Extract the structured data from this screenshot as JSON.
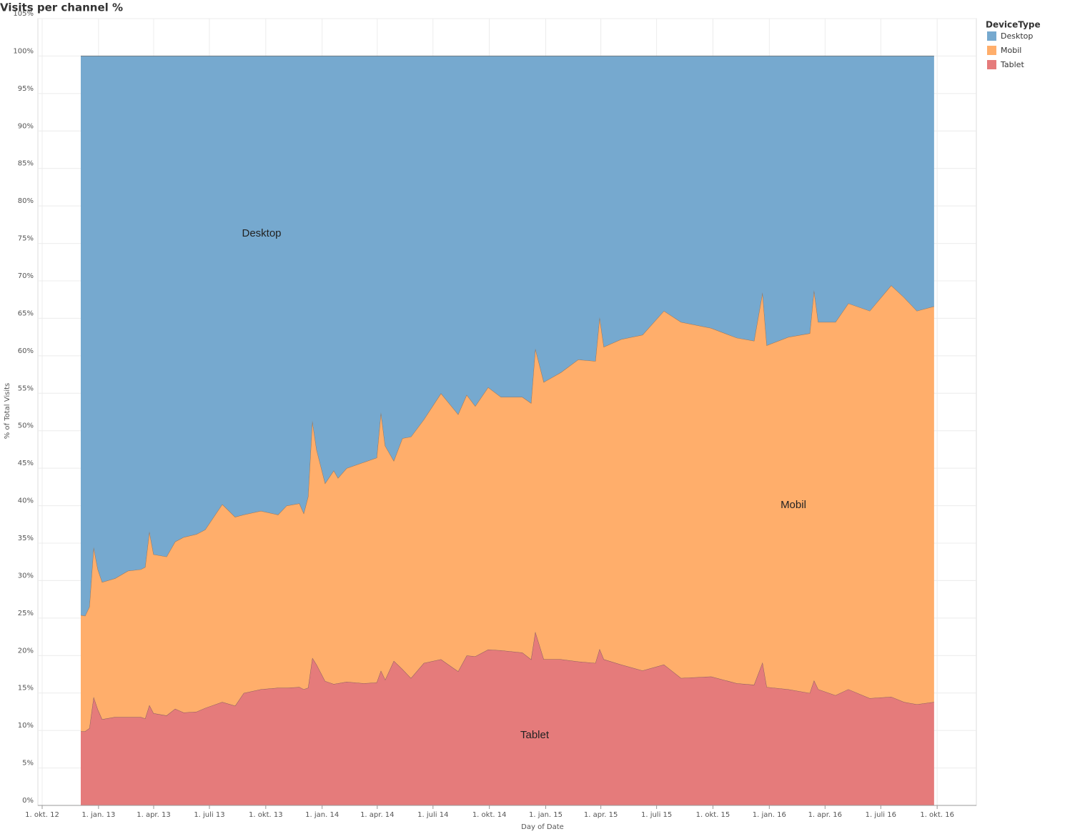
{
  "chart_data": {
    "type": "stacked_area",
    "title": "Visits per channel %",
    "x_label": "Day of Date",
    "y_label": "% of Total Visits",
    "legend_title": "DeviceType",
    "legend_position": "right",
    "grid": true,
    "x": [
      "2012-12-03",
      "2012-12-10",
      "2012-12-17",
      "2012-12-24",
      "2012-12-31",
      "2013-01-07",
      "2013-01-28",
      "2013-02-18",
      "2013-03-11",
      "2013-03-18",
      "2013-03-25",
      "2013-04-01",
      "2013-04-22",
      "2013-05-06",
      "2013-05-20",
      "2013-06-10",
      "2013-06-24",
      "2013-07-22",
      "2013-08-12",
      "2013-08-26",
      "2013-09-23",
      "2013-10-21",
      "2013-11-04",
      "2013-11-25",
      "2013-12-02",
      "2013-12-09",
      "2013-12-16",
      "2013-12-23",
      "2014-01-06",
      "2014-01-20",
      "2014-01-27",
      "2014-02-10",
      "2014-03-10",
      "2014-03-31",
      "2014-04-07",
      "2014-04-14",
      "2014-04-28",
      "2014-05-12",
      "2014-05-26",
      "2014-06-16",
      "2014-07-14",
      "2014-08-11",
      "2014-08-25",
      "2014-09-08",
      "2014-09-29",
      "2014-10-20",
      "2014-11-24",
      "2014-12-08",
      "2014-12-15",
      "2014-12-29",
      "2015-01-26",
      "2015-02-23",
      "2015-03-23",
      "2015-03-30",
      "2015-04-06",
      "2015-05-04",
      "2015-06-08",
      "2015-07-13",
      "2015-08-10",
      "2015-09-28",
      "2015-11-09",
      "2015-12-07",
      "2015-12-21",
      "2015-12-28",
      "2016-02-01",
      "2016-03-07",
      "2016-03-14",
      "2016-03-21",
      "2016-04-18",
      "2016-05-09",
      "2016-06-13",
      "2016-07-18",
      "2016-08-08",
      "2016-08-29",
      "2016-09-26"
    ],
    "series": [
      {
        "name": "Desktop",
        "color": "#76a9cf",
        "values": [
          74.6,
          74.7,
          73.5,
          65.5,
          68.5,
          70.2,
          69.7,
          68.7,
          68.5,
          68.2,
          63.4,
          66.5,
          66.8,
          64.8,
          64.2,
          63.8,
          63.2,
          59.8,
          61.5,
          61.2,
          60.7,
          61.2,
          60.0,
          59.7,
          61.0,
          58.8,
          48.6,
          52.5,
          57.0,
          55.3,
          56.3,
          55.0,
          54.2,
          53.6,
          47.5,
          52.0,
          54.0,
          51.0,
          50.8,
          48.5,
          45.0,
          47.8,
          45.2,
          46.7,
          44.2,
          45.5,
          45.5,
          46.3,
          39.0,
          43.5,
          42.2,
          40.5,
          40.7,
          34.8,
          38.8,
          37.8,
          37.2,
          34.0,
          35.5,
          36.3,
          37.6,
          38.0,
          31.5,
          38.6,
          37.5,
          37.0,
          31.2,
          35.5,
          35.5,
          33.0,
          34.0,
          30.6,
          32.2,
          34.0,
          33.4
        ]
      },
      {
        "name": "Mobil",
        "color": "#ffae6b",
        "values": [
          15.5,
          15.4,
          16.2,
          20.0,
          18.7,
          18.3,
          18.5,
          19.5,
          19.7,
          20.2,
          23.2,
          21.2,
          21.2,
          22.3,
          23.4,
          23.7,
          23.8,
          26.4,
          25.2,
          23.8,
          23.8,
          23.1,
          24.3,
          24.5,
          23.5,
          25.5,
          31.7,
          28.7,
          26.4,
          28.5,
          27.4,
          28.5,
          29.5,
          30.0,
          34.5,
          31.2,
          26.7,
          30.8,
          32.2,
          32.5,
          35.5,
          34.3,
          34.8,
          33.4,
          35.0,
          33.8,
          34.1,
          34.2,
          37.8,
          37.0,
          38.3,
          40.3,
          40.3,
          44.3,
          41.7,
          43.4,
          44.8,
          47.2,
          47.5,
          46.5,
          46.1,
          45.9,
          49.4,
          45.6,
          47.0,
          48.0,
          52.1,
          49.0,
          49.8,
          51.5,
          51.7,
          54.9,
          54.0,
          52.5,
          52.8
        ]
      },
      {
        "name": "Tablet",
        "color": "#e57b7b",
        "values": [
          9.9,
          9.9,
          10.3,
          14.5,
          12.8,
          11.5,
          11.8,
          11.8,
          11.8,
          11.6,
          13.4,
          12.3,
          12.0,
          12.9,
          12.4,
          12.5,
          13.0,
          13.8,
          13.3,
          15.0,
          15.5,
          15.7,
          15.7,
          15.8,
          15.5,
          15.7,
          19.7,
          18.8,
          16.6,
          16.2,
          16.3,
          16.5,
          16.3,
          16.4,
          18.0,
          16.8,
          19.3,
          18.2,
          17.0,
          19.0,
          19.5,
          17.9,
          20.0,
          19.9,
          20.8,
          20.7,
          20.4,
          19.5,
          23.2,
          19.5,
          19.5,
          19.2,
          19.0,
          20.9,
          19.5,
          18.8,
          18.0,
          18.8,
          17.0,
          17.2,
          16.3,
          16.1,
          19.1,
          15.8,
          15.5,
          15.0,
          16.7,
          15.5,
          14.7,
          15.5,
          14.3,
          14.5,
          13.8,
          13.5,
          13.8
        ]
      }
    ],
    "xlim": [
      "2012-09-24",
      "2016-12-04"
    ],
    "xticks": [
      {
        "value": "2012-10-01",
        "label": "1. okt. 12"
      },
      {
        "value": "2013-01-01",
        "label": "1. jan. 13"
      },
      {
        "value": "2013-04-01",
        "label": "1. apr. 13"
      },
      {
        "value": "2013-07-01",
        "label": "1. juli 13"
      },
      {
        "value": "2013-10-01",
        "label": "1. okt. 13"
      },
      {
        "value": "2014-01-01",
        "label": "1. jan. 14"
      },
      {
        "value": "2014-04-01",
        "label": "1. apr. 14"
      },
      {
        "value": "2014-07-01",
        "label": "1. juli 14"
      },
      {
        "value": "2014-10-01",
        "label": "1. okt. 14"
      },
      {
        "value": "2015-01-01",
        "label": "1. jan. 15"
      },
      {
        "value": "2015-04-01",
        "label": "1. apr. 15"
      },
      {
        "value": "2015-07-01",
        "label": "1. juli 15"
      },
      {
        "value": "2015-10-01",
        "label": "1. okt. 15"
      },
      {
        "value": "2016-01-01",
        "label": "1. jan. 16"
      },
      {
        "value": "2016-04-01",
        "label": "1. apr. 16"
      },
      {
        "value": "2016-07-01",
        "label": "1. juli 16"
      },
      {
        "value": "2016-10-01",
        "label": "1. okt. 16"
      }
    ],
    "ylim": [
      0,
      105
    ],
    "yticks": [
      {
        "value": 0,
        "label": "0%"
      },
      {
        "value": 5,
        "label": "5%"
      },
      {
        "value": 10,
        "label": "10%"
      },
      {
        "value": 15,
        "label": "15%"
      },
      {
        "value": 20,
        "label": "20%"
      },
      {
        "value": 25,
        "label": "25%"
      },
      {
        "value": 30,
        "label": "30%"
      },
      {
        "value": 35,
        "label": "35%"
      },
      {
        "value": 40,
        "label": "40%"
      },
      {
        "value": 45,
        "label": "45%"
      },
      {
        "value": 50,
        "label": "50%"
      },
      {
        "value": 55,
        "label": "55%"
      },
      {
        "value": 60,
        "label": "60%"
      },
      {
        "value": 65,
        "label": "65%"
      },
      {
        "value": 70,
        "label": "70%"
      },
      {
        "value": 75,
        "label": "75%"
      },
      {
        "value": 80,
        "label": "80%"
      },
      {
        "value": 85,
        "label": "85%"
      },
      {
        "value": 90,
        "label": "90%"
      },
      {
        "value": 95,
        "label": "95%"
      },
      {
        "value": 100,
        "label": "100%"
      },
      {
        "value": 105,
        "label": "105%"
      }
    ]
  }
}
